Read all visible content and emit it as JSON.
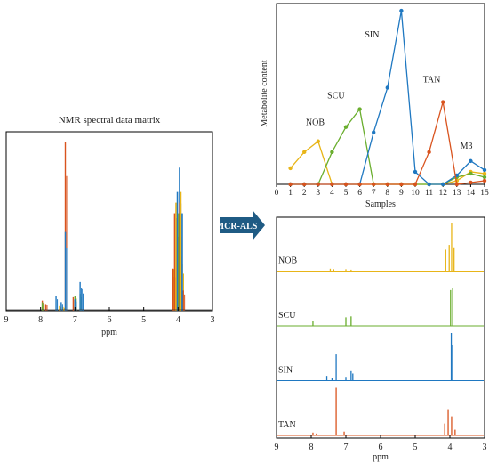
{
  "colors": {
    "NOB": "#E8B518",
    "SCU": "#6AAE2E",
    "SIN": "#1F78C1",
    "TAN": "#D9531E",
    "M3": "#1F78C1",
    "arrow": "#1F5B84",
    "axis": "#000000"
  },
  "arrow_label": "MCR-ALS",
  "left_panel": {
    "title": "NMR spectral data matrix",
    "xlabel": "ppm",
    "xticks": [
      "9",
      "8",
      "7",
      "6",
      "5",
      "4",
      "3"
    ]
  },
  "chart_data": [
    {
      "type": "line",
      "title": "",
      "xlabel": "Samples",
      "ylabel": "Metabolite content",
      "x": [
        0,
        1,
        2,
        3,
        4,
        5,
        6,
        7,
        8,
        9,
        10,
        11,
        12,
        13,
        14,
        15
      ],
      "xlim": [
        0,
        15
      ],
      "ylim": [
        0,
        1.0
      ],
      "series": [
        {
          "name": "NOB",
          "x": [
            1,
            2,
            3,
            4,
            5,
            6,
            7,
            8,
            9,
            10,
            11,
            12,
            13,
            14,
            15
          ],
          "values": [
            0.09,
            0.18,
            0.24,
            0.0,
            0.0,
            0.0,
            0.0,
            0.0,
            0.0,
            0.0,
            0.0,
            0.0,
            0.02,
            0.07,
            0.06
          ]
        },
        {
          "name": "SCU",
          "x": [
            1,
            2,
            3,
            4,
            5,
            6,
            7,
            8,
            9,
            10,
            11,
            12,
            13,
            14,
            15
          ],
          "values": [
            0.0,
            0.0,
            0.0,
            0.18,
            0.32,
            0.42,
            0.0,
            0.0,
            0.0,
            0.0,
            0.0,
            0.0,
            0.04,
            0.06,
            0.04
          ]
        },
        {
          "name": "SIN",
          "x": [
            1,
            2,
            3,
            4,
            5,
            6,
            7,
            8,
            9,
            10,
            11,
            12,
            13,
            14,
            15
          ],
          "values": [
            0.0,
            0.0,
            0.0,
            0.0,
            0.0,
            0.0,
            0.29,
            0.54,
            0.97,
            0.07,
            0.0,
            0.0,
            0.05,
            0.13,
            0.08
          ]
        },
        {
          "name": "TAN",
          "x": [
            1,
            2,
            3,
            4,
            5,
            6,
            7,
            8,
            9,
            10,
            11,
            12,
            13,
            14,
            15
          ],
          "values": [
            0.0,
            0.0,
            0.0,
            0.0,
            0.0,
            0.0,
            0.0,
            0.0,
            0.0,
            0.0,
            0.18,
            0.46,
            0.0,
            0.01,
            0.02
          ]
        }
      ],
      "annotations": [
        "NOB",
        "SCU",
        "SIN",
        "TAN",
        "M3"
      ]
    },
    {
      "type": "line",
      "title": "",
      "xlabel": "ppm",
      "xticks": [
        "9",
        "8",
        "7",
        "6",
        "5",
        "4",
        "3"
      ],
      "xlim": [
        9,
        3
      ],
      "rows": [
        {
          "name": "NOB",
          "peaks": [
            [
              7.45,
              0.05
            ],
            [
              7.35,
              0.04
            ],
            [
              7.0,
              0.04
            ],
            [
              6.85,
              0.03
            ],
            [
              4.12,
              0.45
            ],
            [
              4.02,
              0.55
            ],
            [
              3.95,
              1.0
            ],
            [
              3.88,
              0.5
            ]
          ]
        },
        {
          "name": "SCU",
          "peaks": [
            [
              7.95,
              0.1
            ],
            [
              7.0,
              0.18
            ],
            [
              6.85,
              0.2
            ],
            [
              3.98,
              0.75
            ],
            [
              3.92,
              0.8
            ]
          ]
        },
        {
          "name": "SIN",
          "peaks": [
            [
              7.55,
              0.1
            ],
            [
              7.4,
              0.06
            ],
            [
              7.28,
              0.55
            ],
            [
              7.0,
              0.08
            ],
            [
              6.85,
              0.2
            ],
            [
              6.8,
              0.15
            ],
            [
              3.96,
              1.0
            ],
            [
              3.92,
              0.75
            ]
          ]
        },
        {
          "name": "TAN",
          "peaks": [
            [
              7.95,
              0.06
            ],
            [
              7.85,
              0.04
            ],
            [
              7.28,
              1.0
            ],
            [
              7.05,
              0.08
            ],
            [
              4.15,
              0.25
            ],
            [
              4.05,
              0.55
            ],
            [
              3.95,
              0.4
            ],
            [
              3.85,
              0.12
            ]
          ]
        }
      ]
    }
  ]
}
